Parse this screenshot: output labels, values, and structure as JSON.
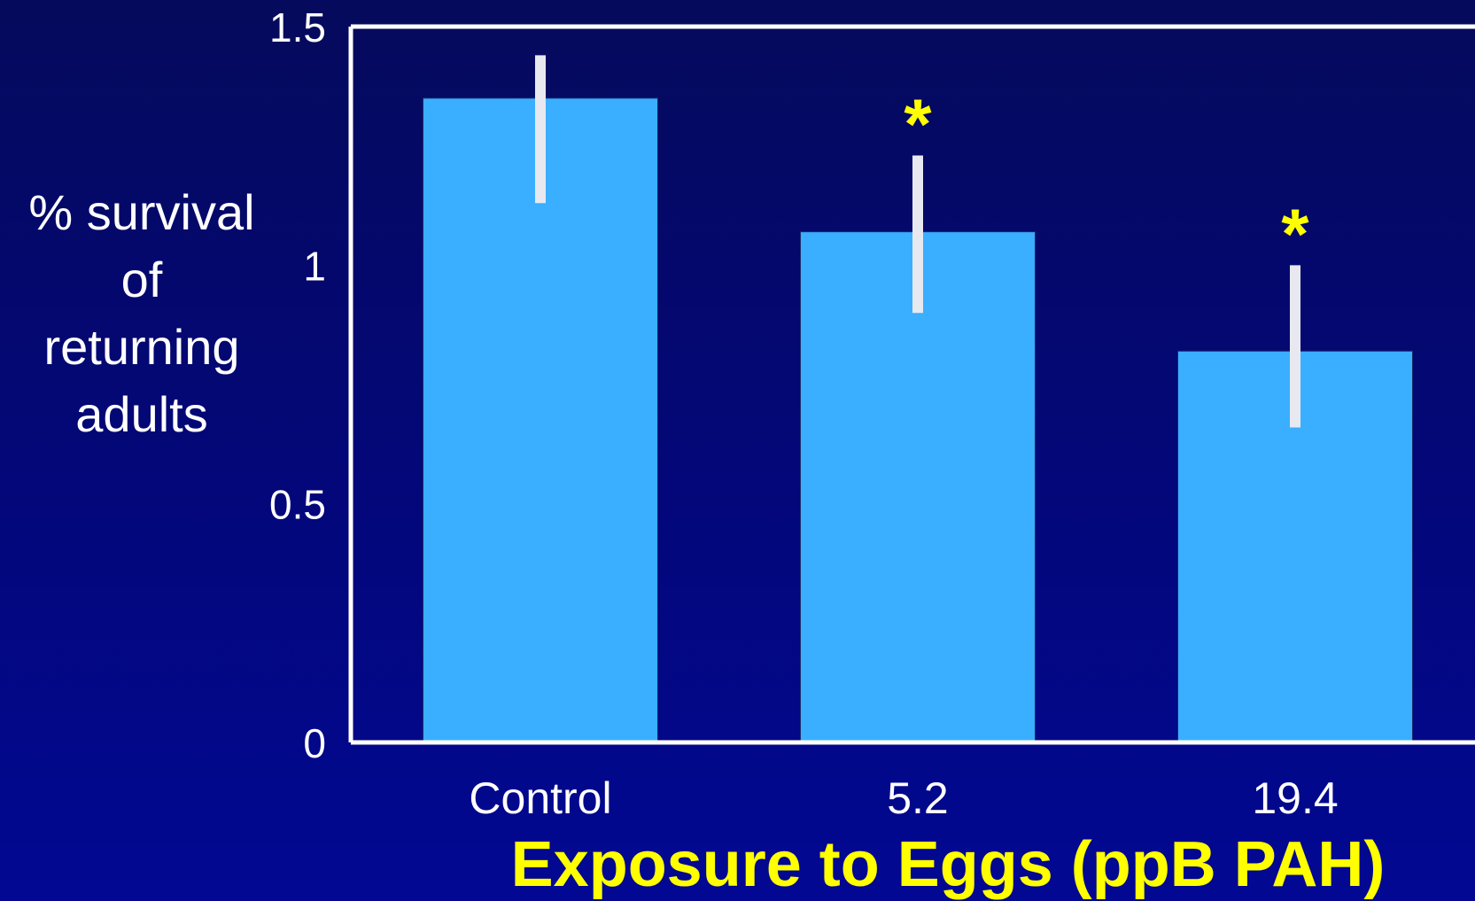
{
  "chart_data": {
    "type": "bar",
    "categories": [
      "Control",
      "5.2",
      "19.4"
    ],
    "values": [
      1.35,
      1.07,
      0.82
    ],
    "error_upper": [
      1.44,
      1.23,
      1.0
    ],
    "error_lower": [
      1.13,
      0.9,
      0.66
    ],
    "significance": [
      "",
      "*",
      "*"
    ],
    "xlabel": "Exposure to Eggs (ppB PAH)",
    "ylabel_lines": [
      "% survival",
      "of",
      "returning",
      "adults"
    ],
    "ylim": [
      0,
      1.5
    ],
    "yticks": [
      {
        "value": 0,
        "label": "0"
      },
      {
        "value": 0.5,
        "label": "0.5"
      },
      {
        "value": 1,
        "label": "1"
      },
      {
        "value": 1.5,
        "label": "1.5"
      }
    ],
    "grid": false,
    "colors": {
      "bar": "#3aaeff",
      "error_bar": "#e8e8f0",
      "axis": "#ffffff",
      "tick_label": "#ffffff",
      "significance": "#ffff00",
      "xlabel": "#ffff00"
    }
  }
}
